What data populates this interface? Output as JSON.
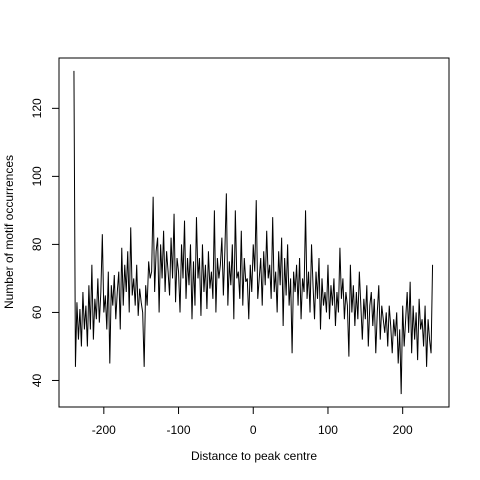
{
  "chart_data": {
    "type": "line",
    "x_label": "Distance to peak centre",
    "y_label": "Number of motif occurrences",
    "x": [
      -240,
      -238,
      -236,
      -234,
      -232,
      -230,
      -228,
      -226,
      -224,
      -222,
      -220,
      -218,
      -216,
      -214,
      -212,
      -210,
      -208,
      -206,
      -204,
      -202,
      -200,
      -198,
      -196,
      -194,
      -192,
      -190,
      -188,
      -186,
      -184,
      -182,
      -180,
      -178,
      -176,
      -174,
      -172,
      -170,
      -168,
      -166,
      -164,
      -162,
      -160,
      -158,
      -156,
      -154,
      -152,
      -150,
      -148,
      -146,
      -144,
      -142,
      -140,
      -138,
      -136,
      -134,
      -132,
      -130,
      -128,
      -126,
      -124,
      -122,
      -120,
      -118,
      -116,
      -114,
      -112,
      -110,
      -108,
      -106,
      -104,
      -102,
      -100,
      -98,
      -96,
      -94,
      -92,
      -90,
      -88,
      -86,
      -84,
      -82,
      -80,
      -78,
      -76,
      -74,
      -72,
      -70,
      -68,
      -66,
      -64,
      -62,
      -60,
      -58,
      -56,
      -54,
      -52,
      -50,
      -48,
      -46,
      -44,
      -42,
      -40,
      -38,
      -36,
      -34,
      -32,
      -30,
      -28,
      -26,
      -24,
      -22,
      -20,
      -18,
      -16,
      -14,
      -12,
      -10,
      -8,
      -6,
      -4,
      -2,
      0,
      2,
      4,
      6,
      8,
      10,
      12,
      14,
      16,
      18,
      20,
      22,
      24,
      26,
      28,
      30,
      32,
      34,
      36,
      38,
      40,
      42,
      44,
      46,
      48,
      50,
      52,
      54,
      56,
      58,
      60,
      62,
      64,
      66,
      68,
      70,
      72,
      74,
      76,
      78,
      80,
      82,
      84,
      86,
      88,
      90,
      92,
      94,
      96,
      98,
      100,
      102,
      104,
      106,
      108,
      110,
      112,
      114,
      116,
      118,
      120,
      122,
      124,
      126,
      128,
      130,
      132,
      134,
      136,
      138,
      140,
      142,
      144,
      146,
      148,
      150,
      152,
      154,
      156,
      158,
      160,
      162,
      164,
      166,
      168,
      170,
      172,
      174,
      176,
      178,
      180,
      182,
      184,
      186,
      188,
      190,
      192,
      194,
      196,
      198,
      200,
      202,
      204,
      206,
      208,
      210,
      212,
      214,
      216,
      218,
      220,
      222,
      224,
      226,
      228,
      230,
      232,
      234,
      236,
      238,
      240
    ],
    "values": [
      131,
      44,
      63,
      52,
      61,
      50,
      66,
      55,
      62,
      50,
      68,
      55,
      74,
      52,
      64,
      58,
      70,
      57,
      66,
      83,
      60,
      65,
      55,
      72,
      45,
      68,
      62,
      71,
      58,
      66,
      72,
      55,
      79,
      62,
      74,
      66,
      78,
      60,
      85,
      65,
      70,
      62,
      74,
      59,
      67,
      63,
      60,
      44,
      68,
      62,
      75,
      70,
      72,
      94,
      66,
      78,
      82,
      60,
      80,
      70,
      84,
      66,
      78,
      72,
      65,
      82,
      70,
      89,
      63,
      76,
      72,
      60,
      80,
      70,
      87,
      64,
      76,
      68,
      80,
      58,
      75,
      62,
      88,
      70,
      76,
      59,
      80,
      66,
      74,
      61,
      78,
      67,
      72,
      64,
      90,
      60,
      76,
      70,
      74,
      82,
      65,
      78,
      95,
      62,
      75,
      68,
      80,
      58,
      90,
      70,
      72,
      64,
      84,
      62,
      76,
      69,
      70,
      58,
      74,
      66,
      80,
      72,
      93,
      64,
      70,
      76,
      62,
      78,
      68,
      84,
      70,
      74,
      64,
      88,
      66,
      72,
      60,
      78,
      68,
      82,
      56,
      76,
      65,
      80,
      62,
      70,
      48,
      72,
      66,
      74,
      62,
      76,
      58,
      70,
      66,
      90,
      64,
      72,
      60,
      80,
      68,
      58,
      72,
      64,
      76,
      55,
      70,
      62,
      66,
      60,
      74,
      58,
      68,
      62,
      70,
      56,
      66,
      60,
      79,
      64,
      70,
      58,
      66,
      62,
      47,
      74,
      60,
      68,
      56,
      66,
      58,
      72,
      62,
      52,
      64,
      58,
      68,
      50,
      62,
      66,
      56,
      64,
      48,
      60,
      68,
      52,
      62,
      58,
      54,
      60,
      50,
      62,
      56,
      48,
      58,
      53,
      60,
      45,
      55,
      36,
      62,
      50,
      58,
      66,
      54,
      69,
      48,
      62,
      52,
      60,
      46,
      64,
      55,
      58,
      50,
      62,
      44,
      58,
      52,
      48,
      74
    ],
    "color": "#000000",
    "xlim": [
      -260,
      262
    ],
    "ylim": [
      32.2,
      134.8
    ],
    "xticks": [
      -200,
      -100,
      0,
      100,
      200
    ],
    "yticks": [
      40,
      60,
      80,
      100,
      120
    ]
  }
}
